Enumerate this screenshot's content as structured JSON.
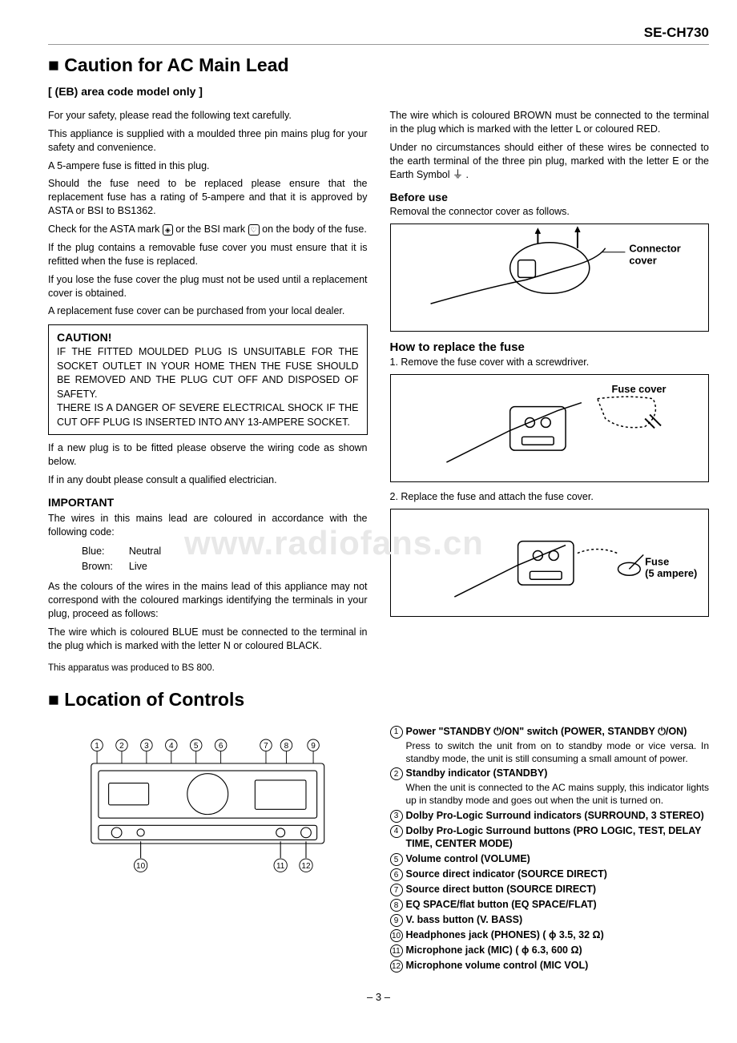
{
  "model": "SE-CH730",
  "page_number": "– 3 –",
  "watermark": "www.radiofans.cn",
  "section1": {
    "title": "Caution for AC Main Lead",
    "sub": "[ (EB) area code model only ]",
    "left": {
      "p1": "For your safety, please read the following text carefully.",
      "p2": "This appliance is supplied with a moulded three pin mains plug for your safety and convenience.",
      "p3": "A 5-ampere fuse is fitted in this plug.",
      "p4": "Should the fuse need to be replaced please ensure that the replacement fuse has a rating of 5-ampere and that it is approved by ASTA or BSI to BS1362.",
      "p5a": "Check for the ASTA mark ",
      "p5b": " or the BSI mark ",
      "p5c": " on the body of the fuse.",
      "p6": "If the plug contains a removable fuse cover you must ensure that it is refitted when the fuse is replaced.",
      "p7": "If you lose the fuse cover the plug must not be used until a replacement cover is obtained.",
      "p8": "A replacement fuse cover can be purchased from your local dealer.",
      "caution_title": "CAUTION!",
      "caution_body": "IF THE FITTED MOULDED PLUG IS UNSUITABLE FOR THE SOCKET OUTLET IN YOUR HOME THEN THE FUSE SHOULD BE REMOVED AND THE PLUG CUT OFF AND DISPOSED OF SAFETY.\nTHERE IS A DANGER OF SEVERE ELECTRICAL SHOCK IF THE CUT OFF PLUG IS INSERTED INTO ANY 13-AMPERE SOCKET.",
      "p9": "If a new plug is to be fitted please observe the wiring code as shown below.",
      "p10": "If in any doubt please consult a qualified electrician.",
      "important": "IMPORTANT",
      "p11": "The wires in this mains lead are coloured in accordance with the following code:",
      "code_blue_k": "Blue:",
      "code_blue_v": "Neutral",
      "code_brown_k": "Brown:",
      "code_brown_v": "Live",
      "p12": "As the colours of the wires in the mains lead of this appliance may not correspond with the coloured markings identifying the terminals in your plug, proceed as follows:",
      "p13": "The wire which is coloured BLUE must be connected to the terminal in the plug which is marked with the letter N or coloured BLACK.",
      "p14": "This apparatus was produced to BS 800."
    },
    "right": {
      "p1": "The wire which is coloured BROWN must be connected to the terminal in the plug which is marked with the letter L or coloured RED.",
      "p2a": "Under no circumstances should either of these wires be connected to the earth terminal of the three pin plug, marked with the letter E or the Earth Symbol ",
      "p2b": " .",
      "before_use": "Before use",
      "p3": "Removal the connector cover as follows.",
      "diagram1_label": "Connector cover",
      "how_replace": "How to replace the fuse",
      "step1": "1. Remove the fuse cover with a screwdriver.",
      "diagram2_label": "Fuse cover",
      "step2": "2. Replace the fuse and attach the fuse cover.",
      "diagram3_label_a": "Fuse",
      "diagram3_label_b": "(5 ampere)"
    }
  },
  "section2": {
    "title": "Location of Controls",
    "diagram_top_nums": [
      "1",
      "2",
      "3",
      "4",
      "5",
      "6",
      "7",
      "8",
      "9"
    ],
    "diagram_bot_nums": [
      "10",
      "11",
      "12"
    ],
    "items": [
      {
        "n": "1",
        "strong": "Power \"STANDBY ⏻/ON\" switch (POWER, STANDBY ⏻/ON)",
        "desc": "Press to switch the unit from on to standby mode or vice versa. In standby mode, the unit is still consuming a small amount of power."
      },
      {
        "n": "2",
        "strong": "Standby indicator (STANDBY)",
        "desc": "When the unit is connected to the AC mains supply, this indicator lights up in standby mode and goes out when the unit is turned on."
      },
      {
        "n": "3",
        "strong": "Dolby Pro-Logic Surround indicators (SURROUND, 3 STEREO)",
        "desc": ""
      },
      {
        "n": "4",
        "strong": "Dolby Pro-Logic Surround buttons (PRO LOGIC, TEST, DELAY TIME, CENTER MODE)",
        "desc": ""
      },
      {
        "n": "5",
        "strong": "Volume control (VOLUME)",
        "desc": ""
      },
      {
        "n": "6",
        "strong": "Source direct indicator (SOURCE DIRECT)",
        "desc": ""
      },
      {
        "n": "7",
        "strong": "Source direct button (SOURCE DIRECT)",
        "desc": ""
      },
      {
        "n": "8",
        "strong": "EQ SPACE/flat button (EQ SPACE/FLAT)",
        "desc": ""
      },
      {
        "n": "9",
        "strong": "V. bass button (V. BASS)",
        "desc": ""
      },
      {
        "n": "10",
        "strong": "Headphones jack (PHONES) ( ϕ 3.5, 32 Ω)",
        "desc": ""
      },
      {
        "n": "11",
        "strong": "Microphone jack (MIC) ( ϕ 6.3, 600 Ω)",
        "desc": ""
      },
      {
        "n": "12",
        "strong": "Microphone volume control (MIC VOL)",
        "desc": ""
      }
    ]
  }
}
